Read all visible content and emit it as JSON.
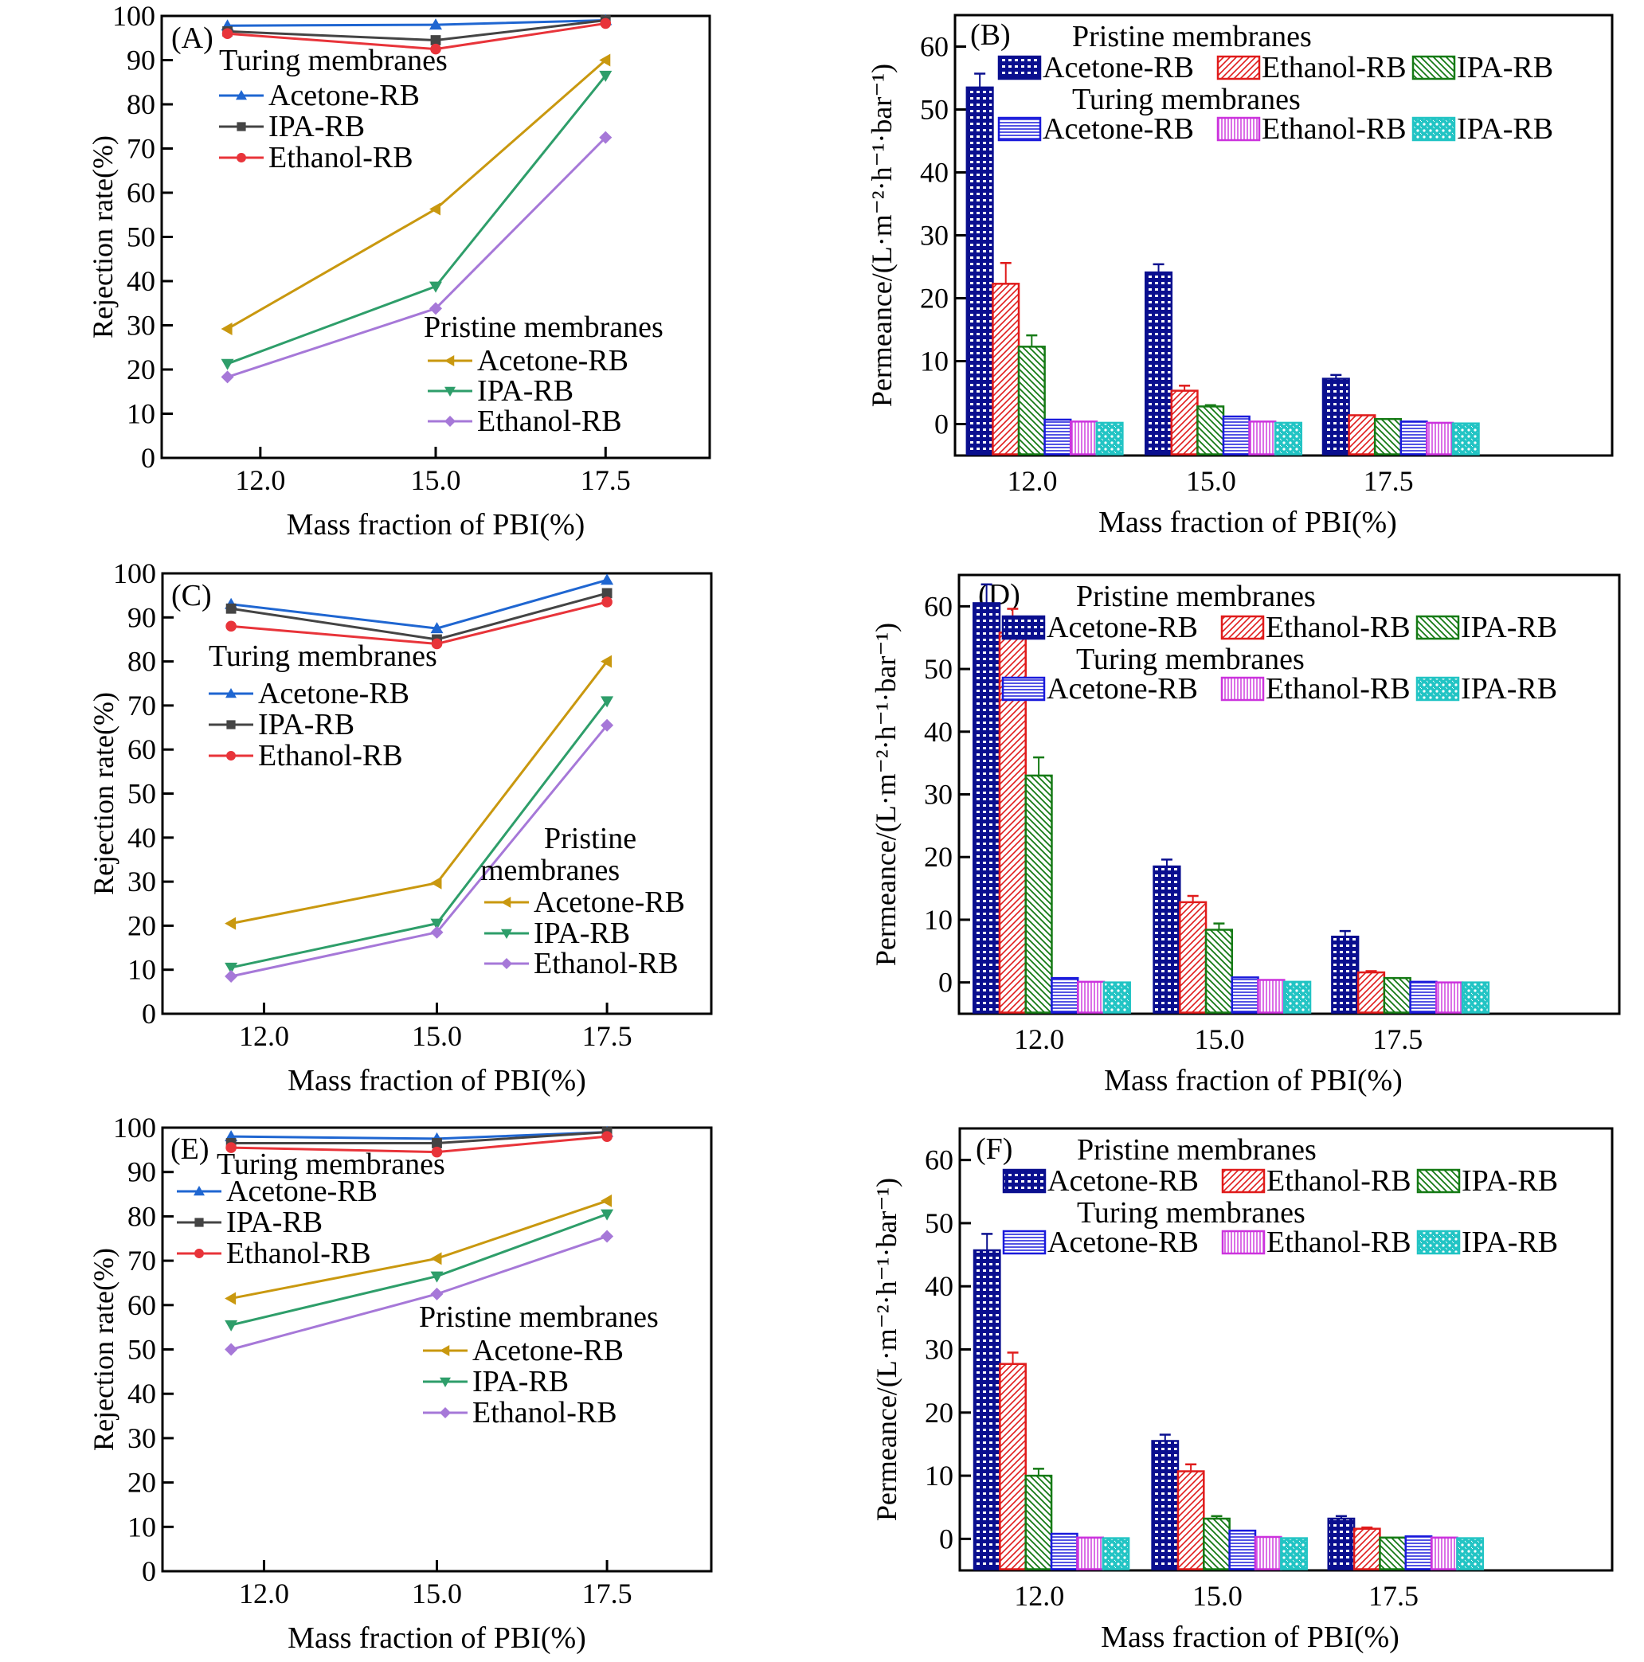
{
  "figure": {
    "panels": [
      "A",
      "B",
      "C",
      "D",
      "E",
      "F"
    ]
  },
  "chart_data": [
    {
      "id": "A",
      "type": "line",
      "panel_label": "(A)",
      "xlabel": "Mass fraction of PBI(%)",
      "ylabel": "Rejection rate(%)",
      "categories": [
        "12.0",
        "15.0",
        "17.5"
      ],
      "ylim": [
        0,
        100
      ],
      "yticks": [
        0,
        10,
        20,
        30,
        40,
        50,
        60,
        70,
        80,
        90,
        100
      ],
      "grid": false,
      "legends": [
        {
          "title": "Turing membranes",
          "placement": "upper-left",
          "entries": [
            "Acetone-RB",
            "IPA-RB",
            "Ethanol-RB"
          ]
        },
        {
          "title": "Pristine membranes",
          "placement": "lower-right",
          "entries": [
            "Acetone-RB",
            "IPA-RB",
            "Ethanol-RB"
          ]
        }
      ],
      "series": [
        {
          "name": "Acetone-RB",
          "group": "Turing membranes",
          "marker": "triangle-up",
          "color": "#1f66d1",
          "values": [
            97.8,
            98.0,
            99.0
          ]
        },
        {
          "name": "IPA-RB",
          "group": "Turing membranes",
          "marker": "square",
          "color": "#444444",
          "values": [
            96.5,
            94.5,
            99.0
          ]
        },
        {
          "name": "Ethanol-RB",
          "group": "Turing membranes",
          "marker": "circle",
          "color": "#e8343a",
          "values": [
            96.0,
            92.5,
            98.3
          ]
        },
        {
          "name": "Acetone-RB",
          "group": "Pristine membranes",
          "marker": "triangle-left",
          "color": "#c9980f",
          "values": [
            29.2,
            56.3,
            90.0
          ]
        },
        {
          "name": "IPA-RB",
          "group": "Pristine membranes",
          "marker": "triangle-down",
          "color": "#2e9e6a",
          "values": [
            21.3,
            38.8,
            86.5
          ]
        },
        {
          "name": "Ethanol-RB",
          "group": "Pristine membranes",
          "marker": "diamond",
          "color": "#a678d8",
          "values": [
            18.3,
            33.8,
            72.5
          ]
        }
      ]
    },
    {
      "id": "B",
      "type": "bar",
      "panel_label": "(B)",
      "xlabel": "Mass fraction of PBI(%)",
      "ylabel": "Permeance/(L·m⁻²·h⁻¹·bar⁻¹)",
      "categories": [
        "12.0",
        "15.0",
        "17.5"
      ],
      "ylim": [
        -5,
        65
      ],
      "yticks": [
        0,
        10,
        20,
        30,
        40,
        50,
        60
      ],
      "grid": false,
      "legends": [
        {
          "title": "Pristine membranes",
          "placement": "top",
          "entries": [
            "Acetone-RB",
            "Ethanol-RB",
            "IPA-RB"
          ]
        },
        {
          "title": "Turing membranes",
          "placement": "top",
          "entries": [
            "Acetone-RB",
            "Ethanol-RB",
            "IPA-RB"
          ]
        }
      ],
      "series": [
        {
          "name": "Acetone-RB",
          "group": "Pristine membranes",
          "pattern": "grid",
          "color": "#0a0f8f",
          "values": [
            53.5,
            24.1,
            7.2
          ],
          "errors": [
            2.2,
            1.3,
            0.6
          ]
        },
        {
          "name": "Ethanol-RB",
          "group": "Pristine membranes",
          "pattern": "diag-right",
          "color": "#e01b1b",
          "values": [
            22.3,
            5.3,
            1.4
          ],
          "errors": [
            3.3,
            0.8,
            0.1
          ]
        },
        {
          "name": "IPA-RB",
          "group": "Pristine membranes",
          "pattern": "diag-left",
          "color": "#157a15",
          "values": [
            12.3,
            2.8,
            0.8
          ],
          "errors": [
            1.8,
            0.2,
            0.1
          ]
        },
        {
          "name": "Acetone-RB",
          "group": "Turing membranes",
          "pattern": "horizontal",
          "color": "#1a1adb",
          "values": [
            0.7,
            1.2,
            0.4
          ],
          "errors": [
            0.05,
            0.05,
            0.05
          ]
        },
        {
          "name": "Ethanol-RB",
          "group": "Turing membranes",
          "pattern": "vertical",
          "color": "#cc33dd",
          "values": [
            0.4,
            0.4,
            0.2
          ],
          "errors": [
            0,
            0,
            0
          ]
        },
        {
          "name": "IPA-RB",
          "group": "Turing membranes",
          "pattern": "dots",
          "color": "#22c4c4",
          "values": [
            0.2,
            0.2,
            0.1
          ],
          "errors": [
            0,
            0,
            0
          ]
        }
      ]
    },
    {
      "id": "C",
      "type": "line",
      "panel_label": "(C)",
      "xlabel": "Mass fraction of PBI(%)",
      "ylabel": "Rejection rate(%)",
      "categories": [
        "12.0",
        "15.0",
        "17.5"
      ],
      "ylim": [
        0,
        100
      ],
      "yticks": [
        0,
        10,
        20,
        30,
        40,
        50,
        60,
        70,
        80,
        90,
        100
      ],
      "grid": false,
      "legends": [
        {
          "title": "Turing membranes",
          "placement": "upper-left",
          "entries": [
            "Acetone-RB",
            "IPA-RB",
            "Ethanol-RB"
          ]
        },
        {
          "title": "Pristine membranes",
          "placement": "lower-right",
          "entries": [
            "Acetone-RB",
            "IPA-RB",
            "Ethanol-RB"
          ]
        }
      ],
      "series": [
        {
          "name": "Acetone-RB",
          "group": "Turing membranes",
          "marker": "triangle-up",
          "color": "#1f66d1",
          "values": [
            93.0,
            87.5,
            98.5
          ]
        },
        {
          "name": "IPA-RB",
          "group": "Turing membranes",
          "marker": "square",
          "color": "#444444",
          "values": [
            92.0,
            85.0,
            95.5
          ]
        },
        {
          "name": "Ethanol-RB",
          "group": "Turing membranes",
          "marker": "circle",
          "color": "#e8343a",
          "values": [
            88.0,
            84.0,
            93.5
          ]
        },
        {
          "name": "Acetone-RB",
          "group": "Pristine membranes",
          "marker": "triangle-left",
          "color": "#c9980f",
          "values": [
            20.5,
            29.7,
            80.0
          ]
        },
        {
          "name": "IPA-RB",
          "group": "Pristine membranes",
          "marker": "triangle-down",
          "color": "#2e9e6a",
          "values": [
            10.5,
            20.5,
            71.0
          ]
        },
        {
          "name": "Ethanol-RB",
          "group": "Pristine membranes",
          "marker": "diamond",
          "color": "#a678d8",
          "values": [
            8.5,
            18.5,
            65.5
          ]
        }
      ]
    },
    {
      "id": "D",
      "type": "bar",
      "panel_label": "(D)",
      "xlabel": "Mass fraction of PBI(%)",
      "ylabel": "Permeance/(L·m⁻²·h⁻¹·bar⁻¹)",
      "categories": [
        "12.0",
        "15.0",
        "17.5"
      ],
      "ylim": [
        -5,
        65
      ],
      "yticks": [
        0,
        10,
        20,
        30,
        40,
        50,
        60
      ],
      "grid": false,
      "legends": [
        {
          "title": "Pristine membranes",
          "placement": "top",
          "entries": [
            "Acetone-RB",
            "Ethanol-RB",
            "IPA-RB"
          ]
        },
        {
          "title": "Turing membranes",
          "placement": "top",
          "entries": [
            "Acetone-RB",
            "Ethanol-RB",
            "IPA-RB"
          ]
        }
      ],
      "series": [
        {
          "name": "Acetone-RB",
          "group": "Pristine membranes",
          "pattern": "grid",
          "color": "#0a0f8f",
          "values": [
            60.5,
            18.5,
            7.3
          ],
          "errors": [
            3.0,
            1.1,
            0.9
          ]
        },
        {
          "name": "Ethanol-RB",
          "group": "Pristine membranes",
          "pattern": "diag-right",
          "color": "#e01b1b",
          "values": [
            55.8,
            12.8,
            1.6
          ],
          "errors": [
            3.8,
            1.0,
            0.2
          ]
        },
        {
          "name": "IPA-RB",
          "group": "Pristine membranes",
          "pattern": "diag-left",
          "color": "#157a15",
          "values": [
            33.0,
            8.4,
            0.7
          ],
          "errors": [
            2.9,
            1.0,
            0.05
          ]
        },
        {
          "name": "Acetone-RB",
          "group": "Turing membranes",
          "pattern": "horizontal",
          "color": "#1a1adb",
          "values": [
            0.7,
            0.8,
            0.1
          ],
          "errors": [
            0.05,
            0.05,
            0
          ]
        },
        {
          "name": "Ethanol-RB",
          "group": "Turing membranes",
          "pattern": "vertical",
          "color": "#cc33dd",
          "values": [
            0.1,
            0.4,
            0.0
          ],
          "errors": [
            0,
            0,
            0
          ]
        },
        {
          "name": "IPA-RB",
          "group": "Turing membranes",
          "pattern": "dots",
          "color": "#22c4c4",
          "values": [
            0.0,
            0.1,
            0.0
          ],
          "errors": [
            0,
            0,
            0
          ]
        }
      ]
    },
    {
      "id": "E",
      "type": "line",
      "panel_label": "(E)",
      "xlabel": "Mass fraction of PBI(%)",
      "ylabel": "Rejection rate(%)",
      "categories": [
        "12.0",
        "15.0",
        "17.5"
      ],
      "ylim": [
        0,
        100
      ],
      "yticks": [
        0,
        10,
        20,
        30,
        40,
        50,
        60,
        70,
        80,
        90,
        100
      ],
      "grid": false,
      "legends": [
        {
          "title": "Turing membranes",
          "placement": "upper-left",
          "entries": [
            "Acetone-RB",
            "IPA-RB",
            "Ethanol-RB"
          ]
        },
        {
          "title": "Pristine membranes",
          "placement": "center-right",
          "entries": [
            "Acetone-RB",
            "IPA-RB",
            "Ethanol-RB"
          ]
        }
      ],
      "series": [
        {
          "name": "Acetone-RB",
          "group": "Turing membranes",
          "marker": "triangle-up",
          "color": "#1f66d1",
          "values": [
            98.0,
            97.5,
            99.0
          ]
        },
        {
          "name": "IPA-RB",
          "group": "Turing membranes",
          "marker": "square",
          "color": "#444444",
          "values": [
            96.5,
            96.5,
            99.0
          ]
        },
        {
          "name": "Ethanol-RB",
          "group": "Turing membranes",
          "marker": "circle",
          "color": "#e8343a",
          "values": [
            95.5,
            94.5,
            98.0
          ]
        },
        {
          "name": "Acetone-RB",
          "group": "Pristine membranes",
          "marker": "triangle-left",
          "color": "#c9980f",
          "values": [
            61.5,
            70.5,
            83.5
          ]
        },
        {
          "name": "IPA-RB",
          "group": "Pristine membranes",
          "marker": "triangle-down",
          "color": "#2e9e6a",
          "values": [
            55.5,
            66.5,
            80.5
          ]
        },
        {
          "name": "Ethanol-RB",
          "group": "Pristine membranes",
          "marker": "diamond",
          "color": "#a678d8",
          "values": [
            50.0,
            62.5,
            75.5
          ]
        }
      ]
    },
    {
      "id": "F",
      "type": "bar",
      "panel_label": "(F)",
      "xlabel": "Mass fraction of PBI(%)",
      "ylabel": "Permeance/(L·m⁻²·h⁻¹·bar⁻¹)",
      "categories": [
        "12.0",
        "15.0",
        "17.5"
      ],
      "ylim": [
        -5,
        65
      ],
      "yticks": [
        0,
        10,
        20,
        30,
        40,
        50,
        60
      ],
      "grid": false,
      "legends": [
        {
          "title": "Pristine membranes",
          "placement": "top",
          "entries": [
            "Acetone-RB",
            "Ethanol-RB",
            "IPA-RB"
          ]
        },
        {
          "title": "Turing membranes",
          "placement": "top",
          "entries": [
            "Acetone-RB",
            "Ethanol-RB",
            "IPA-RB"
          ]
        }
      ],
      "series": [
        {
          "name": "Acetone-RB",
          "group": "Pristine membranes",
          "pattern": "grid",
          "color": "#0a0f8f",
          "values": [
            45.7,
            15.5,
            3.2
          ],
          "errors": [
            2.6,
            1.0,
            0.4
          ]
        },
        {
          "name": "Ethanol-RB",
          "group": "Pristine membranes",
          "pattern": "diag-right",
          "color": "#e01b1b",
          "values": [
            27.7,
            10.7,
            1.6
          ],
          "errors": [
            1.8,
            1.1,
            0.2
          ]
        },
        {
          "name": "IPA-RB",
          "group": "Pristine membranes",
          "pattern": "diag-left",
          "color": "#157a15",
          "values": [
            10.0,
            3.2,
            0.2
          ],
          "errors": [
            1.1,
            0.4,
            0
          ]
        },
        {
          "name": "Acetone-RB",
          "group": "Turing membranes",
          "pattern": "horizontal",
          "color": "#1a1adb",
          "values": [
            0.8,
            1.3,
            0.4
          ],
          "errors": [
            0.05,
            0.05,
            0.05
          ]
        },
        {
          "name": "Ethanol-RB",
          "group": "Turing membranes",
          "pattern": "vertical",
          "color": "#cc33dd",
          "values": [
            0.2,
            0.3,
            0.2
          ],
          "errors": [
            0,
            0,
            0
          ]
        },
        {
          "name": "IPA-RB",
          "group": "Turing membranes",
          "pattern": "dots",
          "color": "#22c4c4",
          "values": [
            0.1,
            0.1,
            0.1
          ],
          "errors": [
            0,
            0,
            0
          ]
        }
      ]
    }
  ]
}
